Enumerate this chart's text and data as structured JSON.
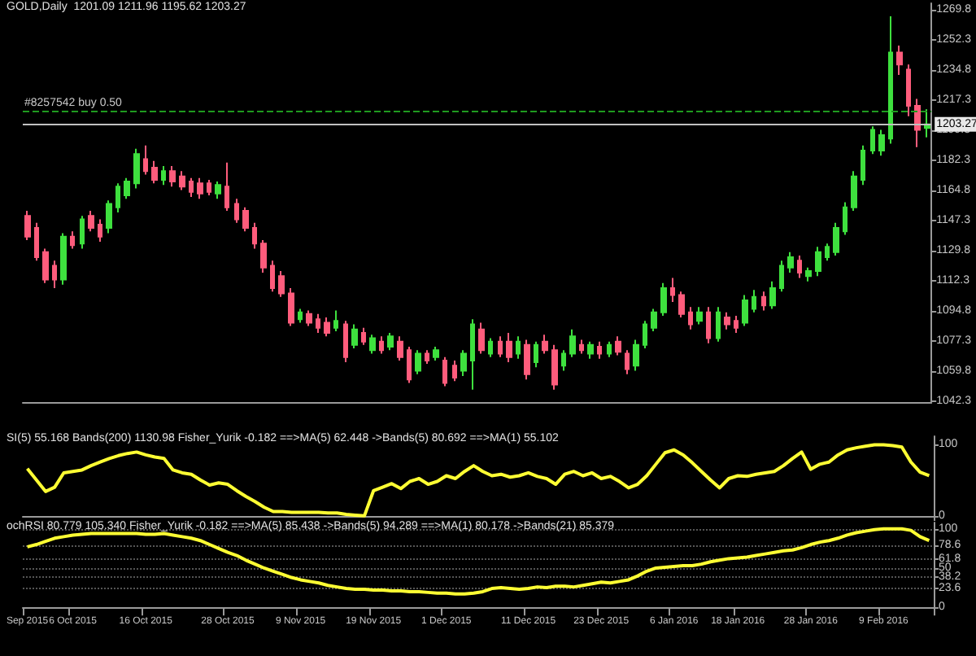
{
  "chart_data": [
    {
      "type": "candlestick",
      "title": "GOLD,Daily  1201.09 1211.96 1195.62 1203.27",
      "categories": [
        null,
        null,
        null,
        null,
        null,
        null,
        null,
        null,
        null,
        null,
        null,
        null,
        null,
        null,
        null,
        null,
        null,
        null,
        null,
        null,
        null,
        null,
        null,
        null,
        null,
        null,
        null,
        null,
        null,
        null,
        null,
        null,
        null,
        null,
        null,
        null,
        null,
        null,
        null,
        null,
        null,
        null,
        null,
        null,
        null,
        null,
        null,
        null,
        null,
        null,
        null,
        null,
        null,
        null,
        null,
        null,
        null,
        null,
        null,
        null,
        null,
        null,
        null,
        null,
        null,
        null,
        null,
        null,
        null,
        null,
        null,
        null,
        null,
        null,
        null,
        null,
        null,
        null,
        null,
        null,
        null,
        null,
        null,
        null,
        null,
        null,
        null,
        null,
        null,
        null,
        null,
        null,
        null,
        null,
        null,
        null,
        null,
        null,
        null,
        null
      ],
      "ohlc": [
        [
          1150,
          1153,
          1136,
          1138
        ],
        [
          1143,
          1146,
          1124,
          1126
        ],
        [
          1129,
          1131,
          1111,
          1113
        ],
        [
          1121,
          1124,
          1108,
          1113
        ],
        [
          1113,
          1140,
          1110,
          1138
        ],
        [
          1138,
          1141,
          1131,
          1133
        ],
        [
          1134,
          1150,
          1131,
          1148
        ],
        [
          1150,
          1153,
          1141,
          1143
        ],
        [
          1145,
          1148,
          1135,
          1138
        ],
        [
          1143,
          1159,
          1140,
          1157
        ],
        [
          1155,
          1169,
          1152,
          1167
        ],
        [
          1162,
          1172,
          1160,
          1170
        ],
        [
          1169,
          1189,
          1166,
          1186
        ],
        [
          1183,
          1191,
          1174,
          1176
        ],
        [
          1178,
          1182,
          1169,
          1171
        ],
        [
          1171,
          1179,
          1168,
          1176
        ],
        [
          1176,
          1179,
          1167,
          1170
        ],
        [
          1173,
          1176,
          1165,
          1167
        ],
        [
          1170,
          1172,
          1161,
          1164
        ],
        [
          1169,
          1172,
          1160,
          1163
        ],
        [
          1169,
          1171,
          1162,
          1164
        ],
        [
          1163,
          1170,
          1160,
          1168
        ],
        [
          1167,
          1181,
          1153,
          1155
        ],
        [
          1157,
          1160,
          1146,
          1148
        ],
        [
          1153,
          1155,
          1141,
          1143
        ],
        [
          1143,
          1146,
          1131,
          1134
        ],
        [
          1134,
          1136,
          1117,
          1120
        ],
        [
          1121,
          1124,
          1106,
          1108
        ],
        [
          1115,
          1118,
          1103,
          1105
        ],
        [
          1105,
          1108,
          1086,
          1088
        ],
        [
          1090,
          1096,
          1088,
          1094
        ],
        [
          1093,
          1095,
          1086,
          1088
        ],
        [
          1090,
          1093,
          1082,
          1085
        ],
        [
          1088,
          1091,
          1080,
          1082
        ],
        [
          1085,
          1095,
          1083,
          1089
        ],
        [
          1087,
          1089,
          1065,
          1068
        ],
        [
          1075,
          1087,
          1073,
          1084
        ],
        [
          1082,
          1085,
          1075,
          1077
        ],
        [
          1072,
          1081,
          1070,
          1079
        ],
        [
          1077,
          1080,
          1070,
          1072
        ],
        [
          1074,
          1082,
          1072,
          1080
        ],
        [
          1077,
          1080,
          1066,
          1068
        ],
        [
          1072,
          1074,
          1053,
          1055
        ],
        [
          1060,
          1072,
          1058,
          1070
        ],
        [
          1070,
          1072,
          1064,
          1066
        ],
        [
          1068,
          1074,
          1066,
          1072
        ],
        [
          1066,
          1068,
          1051,
          1053
        ],
        [
          1063,
          1066,
          1054,
          1056
        ],
        [
          1060,
          1072,
          1057,
          1070
        ],
        [
          1066,
          1090,
          1049,
          1087
        ],
        [
          1084,
          1088,
          1070,
          1072
        ],
        [
          1070,
          1079,
          1068,
          1077
        ],
        [
          1077,
          1080,
          1068,
          1070
        ],
        [
          1077,
          1082,
          1065,
          1068
        ],
        [
          1070,
          1080,
          1067,
          1077
        ],
        [
          1075,
          1078,
          1055,
          1058
        ],
        [
          1065,
          1077,
          1062,
          1075
        ],
        [
          1077,
          1081,
          1070,
          1072
        ],
        [
          1072,
          1075,
          1049,
          1052
        ],
        [
          1063,
          1072,
          1060,
          1070
        ],
        [
          1070,
          1084,
          1068,
          1080
        ],
        [
          1075,
          1078,
          1070,
          1072
        ],
        [
          1070,
          1077,
          1067,
          1075
        ],
        [
          1074,
          1077,
          1067,
          1070
        ],
        [
          1070,
          1077,
          1068,
          1075
        ],
        [
          1077,
          1080,
          1069,
          1071
        ],
        [
          1070,
          1072,
          1058,
          1061
        ],
        [
          1063,
          1078,
          1060,
          1075
        ],
        [
          1075,
          1089,
          1073,
          1087
        ],
        [
          1085,
          1096,
          1083,
          1094
        ],
        [
          1094,
          1111,
          1092,
          1108
        ],
        [
          1108,
          1114,
          1100,
          1104
        ],
        [
          1104,
          1106,
          1091,
          1093
        ],
        [
          1094,
          1097,
          1084,
          1087
        ],
        [
          1089,
          1097,
          1087,
          1094
        ],
        [
          1094,
          1097,
          1076,
          1079
        ],
        [
          1079,
          1097,
          1077,
          1094
        ],
        [
          1091,
          1094,
          1084,
          1087
        ],
        [
          1089,
          1092,
          1082,
          1085
        ],
        [
          1088,
          1104,
          1086,
          1101
        ],
        [
          1096,
          1107,
          1094,
          1103
        ],
        [
          1103,
          1106,
          1095,
          1098
        ],
        [
          1098,
          1112,
          1096,
          1108
        ],
        [
          1108,
          1124,
          1106,
          1121
        ],
        [
          1120,
          1129,
          1117,
          1126
        ],
        [
          1124,
          1127,
          1114,
          1117
        ],
        [
          1115,
          1120,
          1112,
          1118
        ],
        [
          1118,
          1132,
          1115,
          1129
        ],
        [
          1126,
          1134,
          1124,
          1132
        ],
        [
          1129,
          1146,
          1127,
          1143
        ],
        [
          1141,
          1158,
          1139,
          1155
        ],
        [
          1155,
          1176,
          1153,
          1173
        ],
        [
          1171,
          1191,
          1168,
          1188
        ],
        [
          1188,
          1202,
          1186,
          1200
        ],
        [
          1188,
          1200,
          1185,
          1197
        ],
        [
          1195,
          1266,
          1192,
          1245
        ],
        [
          1245,
          1249,
          1232,
          1238
        ],
        [
          1235,
          1238,
          1208,
          1214
        ],
        [
          1214,
          1218,
          1190,
          1200
        ],
        [
          1201.09,
          1211.96,
          1195.62,
          1203.27
        ]
      ],
      "colors": [
        "#ff5c7c",
        "#ff5c7c",
        "#ff5c7c",
        "#ff5c7c",
        "#3ee03e",
        "#ff5c7c",
        "#3ee03e",
        "#ff5c7c",
        "#ff5c7c",
        "#3ee03e",
        "#3ee03e",
        "#3ee03e",
        "#3ee03e",
        "#ff5c7c",
        "#ff5c7c",
        "#3ee03e",
        "#ff5c7c",
        "#ff5c7c",
        "#ff5c7c",
        "#ff5c7c",
        "#ff5c7c",
        "#3ee03e",
        "#ff5c7c",
        "#ff5c7c",
        "#ff5c7c",
        "#ff5c7c",
        "#ff5c7c",
        "#ff5c7c",
        "#ff5c7c",
        "#ff5c7c",
        "#3ee03e",
        "#ff5c7c",
        "#ff5c7c",
        "#ff5c7c",
        "#3ee03e",
        "#ff5c7c",
        "#3ee03e",
        "#ff5c7c",
        "#3ee03e",
        "#ff5c7c",
        "#3ee03e",
        "#ff5c7c",
        "#ff5c7c",
        "#3ee03e",
        "#ff5c7c",
        "#3ee03e",
        "#ff5c7c",
        "#ff5c7c",
        "#3ee03e",
        "#3ee03e",
        "#ff5c7c",
        "#3ee03e",
        "#ff5c7c",
        "#ff5c7c",
        "#3ee03e",
        "#ff5c7c",
        "#3ee03e",
        "#ff5c7c",
        "#ff5c7c",
        "#3ee03e",
        "#3ee03e",
        "#ff5c7c",
        "#3ee03e",
        "#ff5c7c",
        "#3ee03e",
        "#ff5c7c",
        "#ff5c7c",
        "#3ee03e",
        "#3ee03e",
        "#3ee03e",
        "#3ee03e",
        "#ff5c7c",
        "#ff5c7c",
        "#ff5c7c",
        "#3ee03e",
        "#ff5c7c",
        "#3ee03e",
        "#ff5c7c",
        "#ff5c7c",
        "#3ee03e",
        "#3ee03e",
        "#ff5c7c",
        "#3ee03e",
        "#3ee03e",
        "#3ee03e",
        "#ff5c7c",
        "#3ee03e",
        "#3ee03e",
        "#3ee03e",
        "#3ee03e",
        "#3ee03e",
        "#3ee03e",
        "#3ee03e",
        "#3ee03e",
        "#3ee03e",
        "#3ee03e",
        "#ff5c7c",
        "#ff5c7c",
        "#ff5c7c",
        "#3ee03e"
      ],
      "ylim": [
        1042,
        1273.6
      ],
      "yticks": [
        1042.3,
        1059.8,
        1077.3,
        1094.8,
        1112.3,
        1129.8,
        1147.3,
        1164.8,
        1182.3,
        1199.8,
        1217.3,
        1234.8,
        1252.3,
        1269.8
      ],
      "ref_lines": [
        {
          "axis": "y",
          "value": 1211,
          "label": "#8257542 buy 0.50",
          "color": "#1f9a1f",
          "line_style": "dashed"
        },
        {
          "axis": "y",
          "value": 1203.27,
          "label": "1203.27",
          "color": "#c0c0c0",
          "line_style": "solid"
        }
      ],
      "tick_labels": "y"
    },
    {
      "type": "line",
      "title": "SI(5) 55.168 Bands(200) 1130.98 Fisher_Yurik -0.182 ==>MA(5) 62.448 ->Bands(5) 80.692 ==>MA(1) 55.102",
      "categories": [
        null,
        null,
        null,
        null,
        null,
        null,
        null,
        null,
        null,
        null,
        null,
        null,
        null,
        null,
        null,
        null,
        null,
        null,
        null,
        null,
        null,
        null,
        null,
        null,
        null,
        null,
        null,
        null,
        null,
        null,
        null,
        null,
        null,
        null,
        null,
        null,
        null,
        null,
        null,
        null,
        null,
        null,
        null,
        null,
        null,
        null,
        null,
        null,
        null,
        null,
        null,
        null,
        null,
        null,
        null,
        null,
        null,
        null,
        null,
        null,
        null,
        null,
        null,
        null,
        null,
        null,
        null,
        null,
        null,
        null,
        null,
        null,
        null,
        null,
        null,
        null,
        null,
        null,
        null,
        null,
        null,
        null,
        null,
        null,
        null,
        null,
        null,
        null,
        null,
        null,
        null,
        null,
        null,
        null,
        null,
        null,
        null,
        null,
        null,
        null
      ],
      "series": [
        {
          "color": "#ffff33",
          "values": [
            66,
            50,
            34,
            40,
            60,
            62,
            64,
            70,
            75,
            80,
            84,
            87,
            89,
            85,
            82,
            80,
            64,
            60,
            58,
            50,
            43,
            46,
            44,
            35,
            27,
            20,
            12,
            6,
            6,
            5,
            5,
            5,
            5,
            4,
            4,
            2,
            1,
            0,
            35,
            40,
            45,
            38,
            48,
            52,
            44,
            48,
            56,
            52,
            62,
            70,
            62,
            56,
            58,
            54,
            56,
            60,
            55,
            52,
            44,
            58,
            62,
            56,
            60,
            52,
            55,
            48,
            39,
            44,
            56,
            72,
            88,
            92,
            85,
            74,
            62,
            50,
            39,
            52,
            56,
            55,
            58,
            60,
            62,
            70,
            80,
            89,
            65,
            72,
            75,
            85,
            92,
            95,
            97,
            99,
            99,
            98,
            96,
            75,
            61,
            56
          ]
        }
      ],
      "ylim": [
        -7,
        111
      ],
      "yticks": [
        0,
        100
      ],
      "tick_labels": "y",
      "marker": "none"
    },
    {
      "type": "line",
      "title": "ochRSI 80.779 105.340 Fisher_Yurik -0.182 ==>MA(5) 85.438 ->Bands(5) 94.289 ==>MA(1) 80.178 ->Bands(21) 85.379",
      "categories": [
        "Sep 2015",
        null,
        null,
        null,
        null,
        "6 Oct 2015",
        null,
        null,
        null,
        null,
        null,
        null,
        null,
        "16 Oct 2015",
        null,
        null,
        null,
        null,
        null,
        null,
        null,
        null,
        "28 Oct 2015",
        null,
        null,
        null,
        null,
        null,
        null,
        null,
        "9 Nov 2015",
        null,
        null,
        null,
        null,
        null,
        null,
        null,
        "19 Nov 2015",
        null,
        null,
        null,
        null,
        null,
        null,
        null,
        "1 Dec 2015",
        null,
        null,
        null,
        null,
        null,
        null,
        null,
        null,
        "11 Dec 2015",
        null,
        null,
        null,
        null,
        null,
        null,
        null,
        "23 Dec 2015",
        null,
        null,
        null,
        null,
        null,
        null,
        null,
        "6 Jan 2016",
        null,
        null,
        null,
        null,
        null,
        null,
        "18 Jan 2016",
        null,
        null,
        null,
        null,
        null,
        null,
        null,
        "28 Jan 2016",
        null,
        null,
        null,
        null,
        null,
        null,
        null,
        "9 Feb 2016",
        null,
        null,
        null,
        null,
        null
      ],
      "series": [
        {
          "color": "#ffff33",
          "values": [
            77,
            80,
            84,
            88,
            90,
            92,
            93,
            94,
            94,
            94,
            94,
            94,
            94,
            93,
            93,
            94,
            92,
            90,
            88,
            85,
            80,
            75,
            70,
            66,
            60,
            55,
            50,
            46,
            42,
            38,
            35,
            33,
            31,
            28,
            26,
            24,
            23,
            23,
            22,
            22,
            21,
            21,
            20,
            20,
            19,
            18,
            18,
            17,
            17,
            18,
            20,
            24,
            25,
            24,
            23,
            24,
            26,
            25,
            27,
            27,
            26,
            28,
            30,
            32,
            31,
            33,
            35,
            40,
            46,
            50,
            51,
            52,
            53,
            53,
            55,
            58,
            60,
            62,
            63,
            64,
            66,
            68,
            70,
            72,
            73,
            76,
            80,
            83,
            85,
            88,
            92,
            95,
            97,
            99,
            100,
            100,
            100,
            98,
            90,
            85
          ]
        }
      ],
      "ylim": [
        -6,
        108
      ],
      "yticks": [
        0,
        23.6,
        38.2,
        50,
        61.8,
        78.6,
        100
      ],
      "grid": "y",
      "marker": "none"
    }
  ]
}
